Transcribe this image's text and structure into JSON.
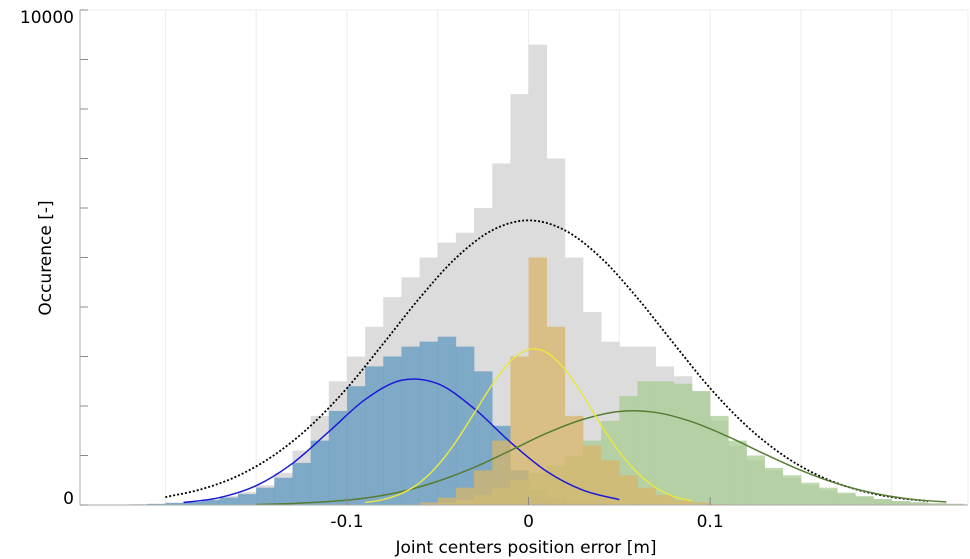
{
  "chart_data": {
    "type": "histogram",
    "x_label": "Joint centers position error [m]",
    "y_label": "Occurence [-]",
    "xlim": [
      -0.247,
      0.242
    ],
    "ylim": [
      0,
      10000
    ],
    "xticks": [
      -0.1,
      0,
      0.1
    ],
    "yticks": [
      0,
      10000
    ],
    "x_grid": [
      -0.2,
      -0.15,
      -0.1,
      -0.05,
      0,
      0.05,
      0.1,
      0.15,
      0.2
    ],
    "y_minor_ticks": [
      1000,
      2000,
      3000,
      4000,
      5000,
      6000,
      7000,
      8000,
      9000
    ],
    "bins": [
      -0.25,
      -0.24,
      -0.23,
      -0.22,
      -0.21,
      -0.2,
      -0.19,
      -0.18,
      -0.17,
      -0.16,
      -0.15,
      -0.14,
      -0.13,
      -0.12,
      -0.11,
      -0.1,
      -0.09,
      -0.08,
      -0.07,
      -0.06,
      -0.05,
      -0.04,
      -0.03,
      -0.02,
      -0.01,
      0,
      0.01,
      0.02,
      0.03,
      0.04,
      0.05,
      0.06,
      0.07,
      0.08,
      0.09,
      0.1,
      0.11,
      0.12,
      0.13,
      0.14,
      0.15,
      0.16,
      0.17,
      0.18,
      0.19,
      0.2,
      0.21,
      0.22,
      0.23,
      0.24
    ],
    "series": [
      {
        "color": "#dcdcdc",
        "opacity": 1,
        "values": [
          0,
          0,
          10,
          20,
          30,
          50,
          80,
          120,
          180,
          260,
          400,
          650,
          1100,
          1800,
          2500,
          3000,
          3600,
          4200,
          4600,
          5000,
          5300,
          5500,
          6000,
          6900,
          8300,
          9300,
          7000,
          5000,
          3900,
          3300,
          3200,
          3200,
          2800,
          2600,
          2300,
          1700,
          1200,
          900,
          700,
          550,
          400,
          300,
          220,
          160,
          120,
          80,
          60,
          40,
          30
        ]
      },
      {
        "color": "#5f98c0",
        "opacity": 0.75,
        "values": [
          0,
          0,
          0,
          10,
          20,
          40,
          60,
          100,
          150,
          220,
          350,
          550,
          850,
          1300,
          1900,
          2400,
          2800,
          3000,
          3200,
          3300,
          3400,
          3200,
          2700,
          1600,
          700,
          300,
          150,
          80,
          40,
          0,
          0,
          0,
          0,
          0,
          0,
          0,
          0,
          0,
          0,
          0,
          0,
          0,
          0,
          0,
          0,
          0,
          0,
          0,
          0
        ]
      },
      {
        "color": "#a9cc94",
        "opacity": 0.75,
        "values": [
          0,
          0,
          0,
          0,
          0,
          0,
          0,
          0,
          0,
          0,
          0,
          0,
          0,
          0,
          0,
          0,
          0,
          0,
          0,
          0,
          50,
          100,
          200,
          350,
          500,
          650,
          800,
          1000,
          1300,
          1700,
          2200,
          2500,
          2500,
          2450,
          2300,
          1800,
          1300,
          1000,
          750,
          600,
          450,
          350,
          250,
          180,
          120,
          80,
          50,
          30,
          20
        ]
      },
      {
        "color": "#d8b56a",
        "opacity": 0.75,
        "values": [
          0,
          0,
          0,
          0,
          0,
          0,
          0,
          0,
          0,
          0,
          0,
          0,
          0,
          0,
          0,
          0,
          0,
          0,
          0,
          50,
          150,
          350,
          700,
          1300,
          3000,
          5000,
          3600,
          1800,
          1200,
          900,
          600,
          350,
          200,
          100,
          50,
          20,
          0,
          0,
          0,
          0,
          0,
          0,
          0,
          0,
          0,
          0,
          0,
          0,
          0
        ]
      }
    ],
    "curves": [
      {
        "color": "#000000",
        "dash": true,
        "x": [
          -0.2,
          -0.18,
          -0.16,
          -0.14,
          -0.12,
          -0.1,
          -0.08,
          -0.06,
          -0.04,
          -0.02,
          0,
          0.02,
          0.04,
          0.06,
          0.08,
          0.1,
          0.12,
          0.14,
          0.16,
          0.18,
          0.2,
          0.22
        ],
        "values": [
          160,
          320,
          590,
          1010,
          1600,
          2360,
          3260,
          4180,
          4990,
          5550,
          5750,
          5550,
          4990,
          4180,
          3260,
          2360,
          1600,
          1010,
          590,
          320,
          160,
          80
        ]
      },
      {
        "color": "#1a1ad6",
        "dash": false,
        "x": [
          -0.19,
          -0.17,
          -0.15,
          -0.13,
          -0.11,
          -0.09,
          -0.07,
          -0.05,
          -0.03,
          -0.01,
          0.01,
          0.03,
          0.05
        ],
        "values": [
          50,
          150,
          390,
          840,
          1480,
          2130,
          2520,
          2450,
          1950,
          1270,
          680,
          300,
          110
        ]
      },
      {
        "color": "#567d33",
        "dash": false,
        "x": [
          -0.15,
          -0.13,
          -0.11,
          -0.09,
          -0.07,
          -0.05,
          -0.03,
          -0.01,
          0.01,
          0.03,
          0.05,
          0.07,
          0.09,
          0.11,
          0.13,
          0.15,
          0.17,
          0.19,
          0.21,
          0.23
        ],
        "values": [
          10,
          30,
          70,
          140,
          270,
          480,
          760,
          1100,
          1450,
          1730,
          1890,
          1870,
          1680,
          1380,
          1030,
          700,
          430,
          240,
          120,
          60
        ]
      },
      {
        "color": "#e6e645",
        "dash": false,
        "x": [
          -0.09,
          -0.08,
          -0.07,
          -0.06,
          -0.05,
          -0.04,
          -0.03,
          -0.02,
          -0.01,
          0,
          0.01,
          0.02,
          0.03,
          0.04,
          0.05,
          0.06,
          0.07,
          0.08,
          0.09
        ],
        "values": [
          50,
          110,
          230,
          450,
          800,
          1280,
          1850,
          2430,
          2900,
          3140,
          3080,
          2740,
          2210,
          1610,
          1070,
          650,
          350,
          170,
          80
        ]
      }
    ]
  }
}
